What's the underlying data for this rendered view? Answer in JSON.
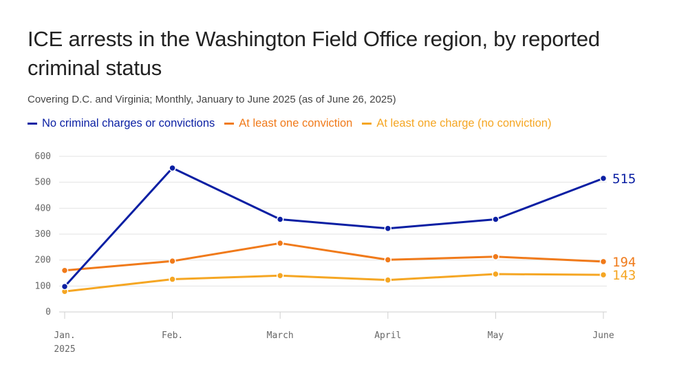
{
  "header": {
    "title": "ICE arrests in the Washington Field Office region, by reported criminal status",
    "subtitle": "Covering D.C. and Virginia; Monthly, January to June 2025 (as of June 26, 2025)"
  },
  "chart_data": {
    "type": "line",
    "title": "ICE arrests in the Washington Field Office region, by reported criminal status",
    "subtitle": "Covering D.C. and Virginia; Monthly, January to June 2025 (as of June 26, 2025)",
    "categories": [
      "Jan.",
      "Feb.",
      "March",
      "April",
      "May",
      "June"
    ],
    "category_sublabels": [
      "2025",
      "",
      "",
      "",
      "",
      ""
    ],
    "ylim": [
      0,
      600
    ],
    "yticks": [
      0,
      100,
      200,
      300,
      400,
      500,
      600
    ],
    "grid": true,
    "legend_position": "top-left",
    "series": [
      {
        "name": "No criminal charges or convictions",
        "color": "#0a1fa3",
        "values": [
          98,
          555,
          357,
          322,
          357,
          515
        ],
        "end_label": "515"
      },
      {
        "name": "At least one conviction",
        "color": "#f07a1a",
        "values": [
          160,
          196,
          265,
          201,
          213,
          194
        ],
        "end_label": "194"
      },
      {
        "name": "At least one charge (no conviction)",
        "color": "#f5a623",
        "values": [
          79,
          126,
          140,
          123,
          146,
          143
        ],
        "end_label": "143"
      }
    ]
  }
}
